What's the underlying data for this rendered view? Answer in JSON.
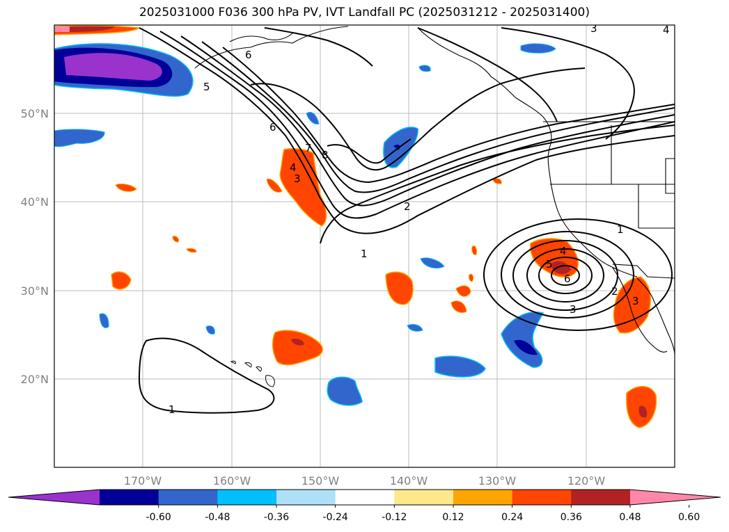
{
  "title": "2025031000 F036 300 hPa PV, IVT Landfall PC (2025031212 - 2025031400)",
  "map": {
    "lon_ticks": [
      "170°W",
      "160°W",
      "150°W",
      "140°W",
      "130°W",
      "120°W"
    ],
    "lat_ticks": [
      "50°N",
      "40°N",
      "30°N",
      "20°N"
    ],
    "gridlines": true,
    "contour_color": "#000000"
  },
  "contour_labels": [
    "5",
    "6",
    "7",
    "8",
    "4",
    "3",
    "2",
    "1",
    "1",
    "1",
    "4",
    "5",
    "6",
    "3",
    "2",
    "6",
    "3",
    "3",
    "4"
  ],
  "colorbar": {
    "ticks": [
      "-0.60",
      "-0.48",
      "-0.36",
      "-0.24",
      "-0.12",
      "0.12",
      "0.24",
      "0.36",
      "0.48",
      "0.60"
    ],
    "colors": [
      "#9933cc",
      "#000099",
      "#3366cc",
      "#00bfff",
      "#aee0f8",
      "#ffffff",
      "#fde88c",
      "#ffa500",
      "#ff4500",
      "#b22222",
      "#ff88aa"
    ],
    "extend": "both"
  }
}
